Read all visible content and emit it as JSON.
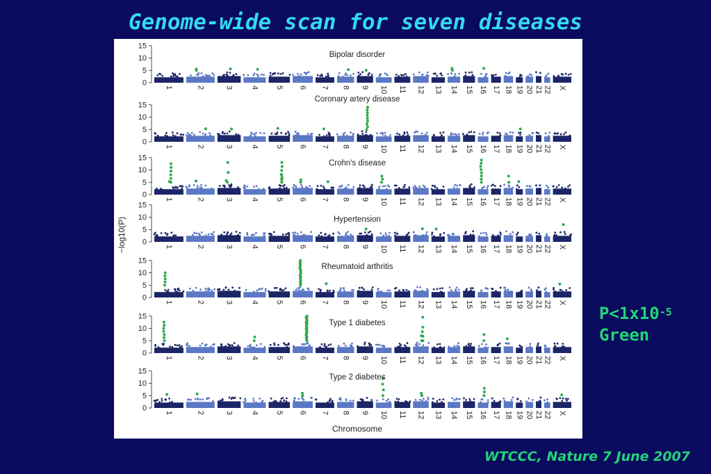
{
  "slide": {
    "title": "Genome-wide scan for seven diseases",
    "threshold_line1": "P<1x10",
    "threshold_exp": "-5",
    "threshold_line2": "Green",
    "citation": "WTCCC, Nature 7 June 2007"
  },
  "colors": {
    "background": "#0a0a5e",
    "title": "#33d9f2",
    "note": "#22d477",
    "chrom_dark": "#1c2566",
    "chrom_light": "#5b78c4",
    "significant": "#2eaa4e"
  },
  "chart_data": {
    "type": "scatter",
    "xlabel": "Chromosome",
    "ylabel": "−log10(P)",
    "ylim": [
      0,
      15
    ],
    "yticks": [
      0,
      5,
      10,
      15
    ],
    "significance_threshold_p": "1x10^-5",
    "chromosomes": [
      "1",
      "2",
      "3",
      "4",
      "5",
      "6",
      "7",
      "8",
      "9",
      "10",
      "11",
      "12",
      "13",
      "14",
      "15",
      "16",
      "17",
      "18",
      "19",
      "20",
      "21",
      "22",
      "X"
    ],
    "chromosome_lengths": [
      248,
      242,
      198,
      190,
      181,
      171,
      159,
      145,
      138,
      134,
      135,
      133,
      114,
      107,
      102,
      90,
      83,
      80,
      59,
      64,
      47,
      51,
      156
    ],
    "panels": [
      {
        "name": "Bipolar disorder",
        "hits": [
          {
            "chr": "2",
            "y": 5.5,
            "n": 2
          },
          {
            "chr": "3",
            "y": 5.6,
            "n": 1
          },
          {
            "chr": "4",
            "y": 5.4,
            "n": 1
          },
          {
            "chr": "8",
            "y": 5.3,
            "n": 1
          },
          {
            "chr": "9",
            "y": 5.0,
            "n": 1
          },
          {
            "chr": "14",
            "y": 5.8,
            "n": 2
          },
          {
            "chr": "16",
            "y": 5.8,
            "n": 1
          }
        ]
      },
      {
        "name": "Coronary artery disease",
        "hits": [
          {
            "chr": "2",
            "y": 5.3,
            "n": 1
          },
          {
            "chr": "3",
            "y": 5.2,
            "n": 1
          },
          {
            "chr": "5",
            "y": 5.4,
            "n": 1
          },
          {
            "chr": "7",
            "y": 5.2,
            "n": 1
          },
          {
            "chr": "9",
            "y": 14,
            "n": 9
          },
          {
            "chr": "19",
            "y": 5.2,
            "n": 1
          }
        ]
      },
      {
        "name": "Crohn's disease",
        "hits": [
          {
            "chr": "1",
            "y": 12.5,
            "n": 6
          },
          {
            "chr": "1",
            "y": 5.3,
            "n": 1
          },
          {
            "chr": "2",
            "y": 5.5,
            "n": 1
          },
          {
            "chr": "3",
            "y": 13,
            "n": 3
          },
          {
            "chr": "3",
            "y": 5.7,
            "n": 1
          },
          {
            "chr": "5",
            "y": 13,
            "n": 6
          },
          {
            "chr": "5",
            "y": 8,
            "n": 4
          },
          {
            "chr": "6",
            "y": 6,
            "n": 2
          },
          {
            "chr": "7",
            "y": 5.2,
            "n": 1
          },
          {
            "chr": "10",
            "y": 7.5,
            "n": 3
          },
          {
            "chr": "16",
            "y": 14,
            "n": 8
          },
          {
            "chr": "18",
            "y": 7.5,
            "n": 2
          },
          {
            "chr": "19",
            "y": 5.3,
            "n": 1
          }
        ]
      },
      {
        "name": "Hypertension",
        "hits": [
          {
            "chr": "9",
            "y": 5.2,
            "n": 1
          },
          {
            "chr": "12",
            "y": 5.3,
            "n": 1
          },
          {
            "chr": "13",
            "y": 5.2,
            "n": 1
          },
          {
            "chr": "X",
            "y": 7,
            "n": 1
          }
        ]
      },
      {
        "name": "Rheumatoid arthritis",
        "hits": [
          {
            "chr": "1",
            "y": 10,
            "n": 5
          },
          {
            "chr": "6",
            "y": 15,
            "n": 16
          },
          {
            "chr": "7",
            "y": 5.6,
            "n": 1
          },
          {
            "chr": "X",
            "y": 5.4,
            "n": 1
          }
        ]
      },
      {
        "name": "Type 1 diabetes",
        "hits": [
          {
            "chr": "1",
            "y": 12.5,
            "n": 7
          },
          {
            "chr": "4",
            "y": 6.5,
            "n": 2
          },
          {
            "chr": "6",
            "y": 15,
            "n": 20
          },
          {
            "chr": "12",
            "y": 10.5,
            "n": 4
          },
          {
            "chr": "12",
            "y": 14.5,
            "n": 1
          },
          {
            "chr": "12",
            "y": 7,
            "n": 2
          },
          {
            "chr": "16",
            "y": 7.5,
            "n": 2
          },
          {
            "chr": "18",
            "y": 5.8,
            "n": 1
          }
        ]
      },
      {
        "name": "Type 2 diabetes",
        "hits": [
          {
            "chr": "1",
            "y": 5.5,
            "n": 1
          },
          {
            "chr": "2",
            "y": 5.7,
            "n": 1
          },
          {
            "chr": "6",
            "y": 6,
            "n": 2
          },
          {
            "chr": "10",
            "y": 12,
            "n": 4
          },
          {
            "chr": "12",
            "y": 6,
            "n": 2
          },
          {
            "chr": "16",
            "y": 8,
            "n": 3
          },
          {
            "chr": "X",
            "y": 5.3,
            "n": 1
          }
        ]
      }
    ]
  }
}
